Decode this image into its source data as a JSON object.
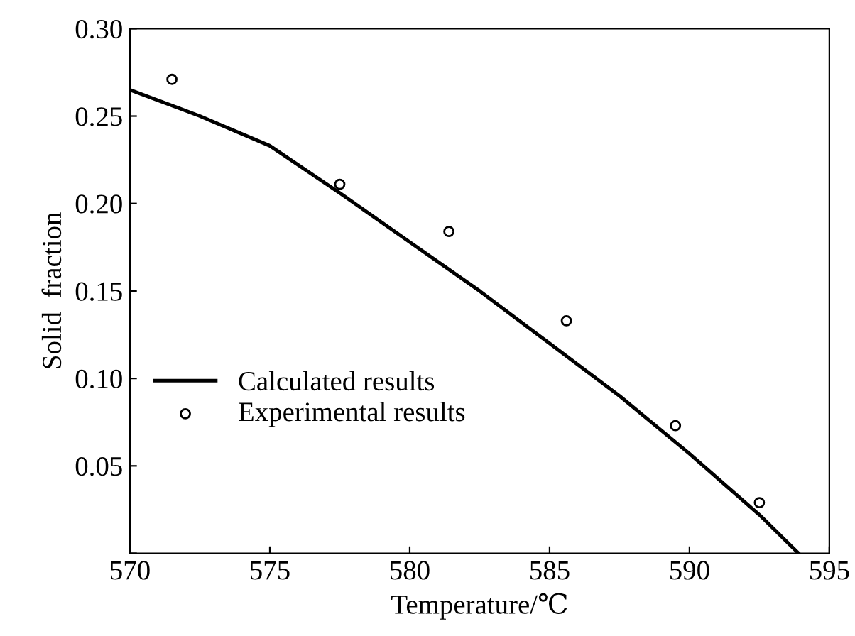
{
  "chart_data": {
    "type": "line",
    "xlabel": "Temperature/℃",
    "ylabel": "Solid  fraction",
    "xlim": [
      570,
      595
    ],
    "xticks": [
      570,
      575,
      580,
      585,
      590,
      595
    ],
    "ylim": [
      0,
      0.3
    ],
    "yticks": [
      {
        "value": 0,
        "label": null
      },
      {
        "value": 0.05,
        "label": "0.05"
      },
      {
        "value": 0.1,
        "label": "0.10"
      },
      {
        "value": 0.15,
        "label": "0.15"
      },
      {
        "value": 0.2,
        "label": "0.20"
      },
      {
        "value": 0.25,
        "label": "0.25"
      },
      {
        "value": 0.3,
        "label": "0.30"
      }
    ],
    "grid": false,
    "legend": "bottom left",
    "series": [
      {
        "name": "Calculated results",
        "color": "#000000",
        "marker": "none",
        "line_style": "solid",
        "x": [
          570,
          572.5,
          575,
          577.5,
          580,
          582.5,
          585,
          587.5,
          590,
          592.5,
          593.9
        ],
        "values": [
          0.265,
          0.25,
          0.233,
          0.206,
          0.178,
          0.15,
          0.12,
          0.09,
          0.057,
          0.022,
          0.0
        ]
      },
      {
        "name": "Experimental results",
        "type": "scatter",
        "color": "#000000",
        "marker": "circle",
        "x": [
          571.5,
          577.5,
          581.4,
          585.6,
          589.5,
          592.5
        ],
        "values": [
          0.271,
          0.211,
          0.184,
          0.133,
          0.073,
          0.029
        ]
      }
    ]
  }
}
